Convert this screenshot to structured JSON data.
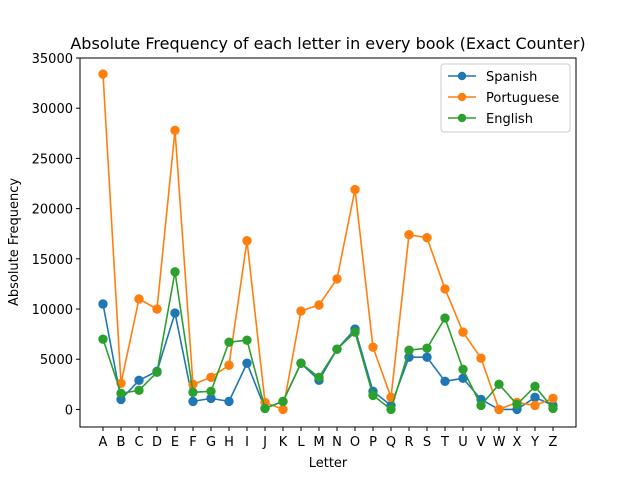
{
  "chart_data": {
    "type": "line",
    "title": "Absolute Frequency of each letter in every book (Exact Counter)",
    "xlabel": "Letter",
    "ylabel": "Absolute Frequency",
    "categories": [
      "A",
      "B",
      "C",
      "D",
      "E",
      "F",
      "G",
      "H",
      "I",
      "J",
      "K",
      "L",
      "M",
      "N",
      "O",
      "P",
      "Q",
      "R",
      "S",
      "T",
      "U",
      "V",
      "W",
      "X",
      "Y",
      "Z"
    ],
    "ylim": [
      -1750,
      35000
    ],
    "yticks": [
      0,
      5000,
      10000,
      15000,
      20000,
      25000,
      30000,
      35000
    ],
    "grid": false,
    "legend_position": "top-right",
    "series": [
      {
        "name": "Spanish",
        "color": "#1f77b4",
        "values": [
          10500,
          1000,
          2900,
          3800,
          9600,
          800,
          1100,
          800,
          4600,
          100,
          800,
          4600,
          2900,
          6000,
          8000,
          1800,
          400,
          5200,
          5200,
          2800,
          3100,
          1000,
          0,
          0,
          1200,
          400
        ]
      },
      {
        "name": "Portuguese",
        "color": "#ff7f0e",
        "values": [
          33400,
          2600,
          11000,
          10000,
          27800,
          2500,
          3200,
          4400,
          16800,
          700,
          0,
          9800,
          10400,
          13000,
          21900,
          6200,
          1200,
          17400,
          17100,
          12000,
          7700,
          5100,
          0,
          700,
          400,
          1100
        ]
      },
      {
        "name": "English",
        "color": "#2ca02c",
        "values": [
          7000,
          1600,
          1900,
          3700,
          13700,
          1700,
          1800,
          6700,
          6900,
          100,
          800,
          4600,
          3200,
          6000,
          7700,
          1400,
          0,
          5900,
          6100,
          9100,
          4000,
          400,
          2500,
          500,
          2300,
          100
        ]
      }
    ]
  }
}
